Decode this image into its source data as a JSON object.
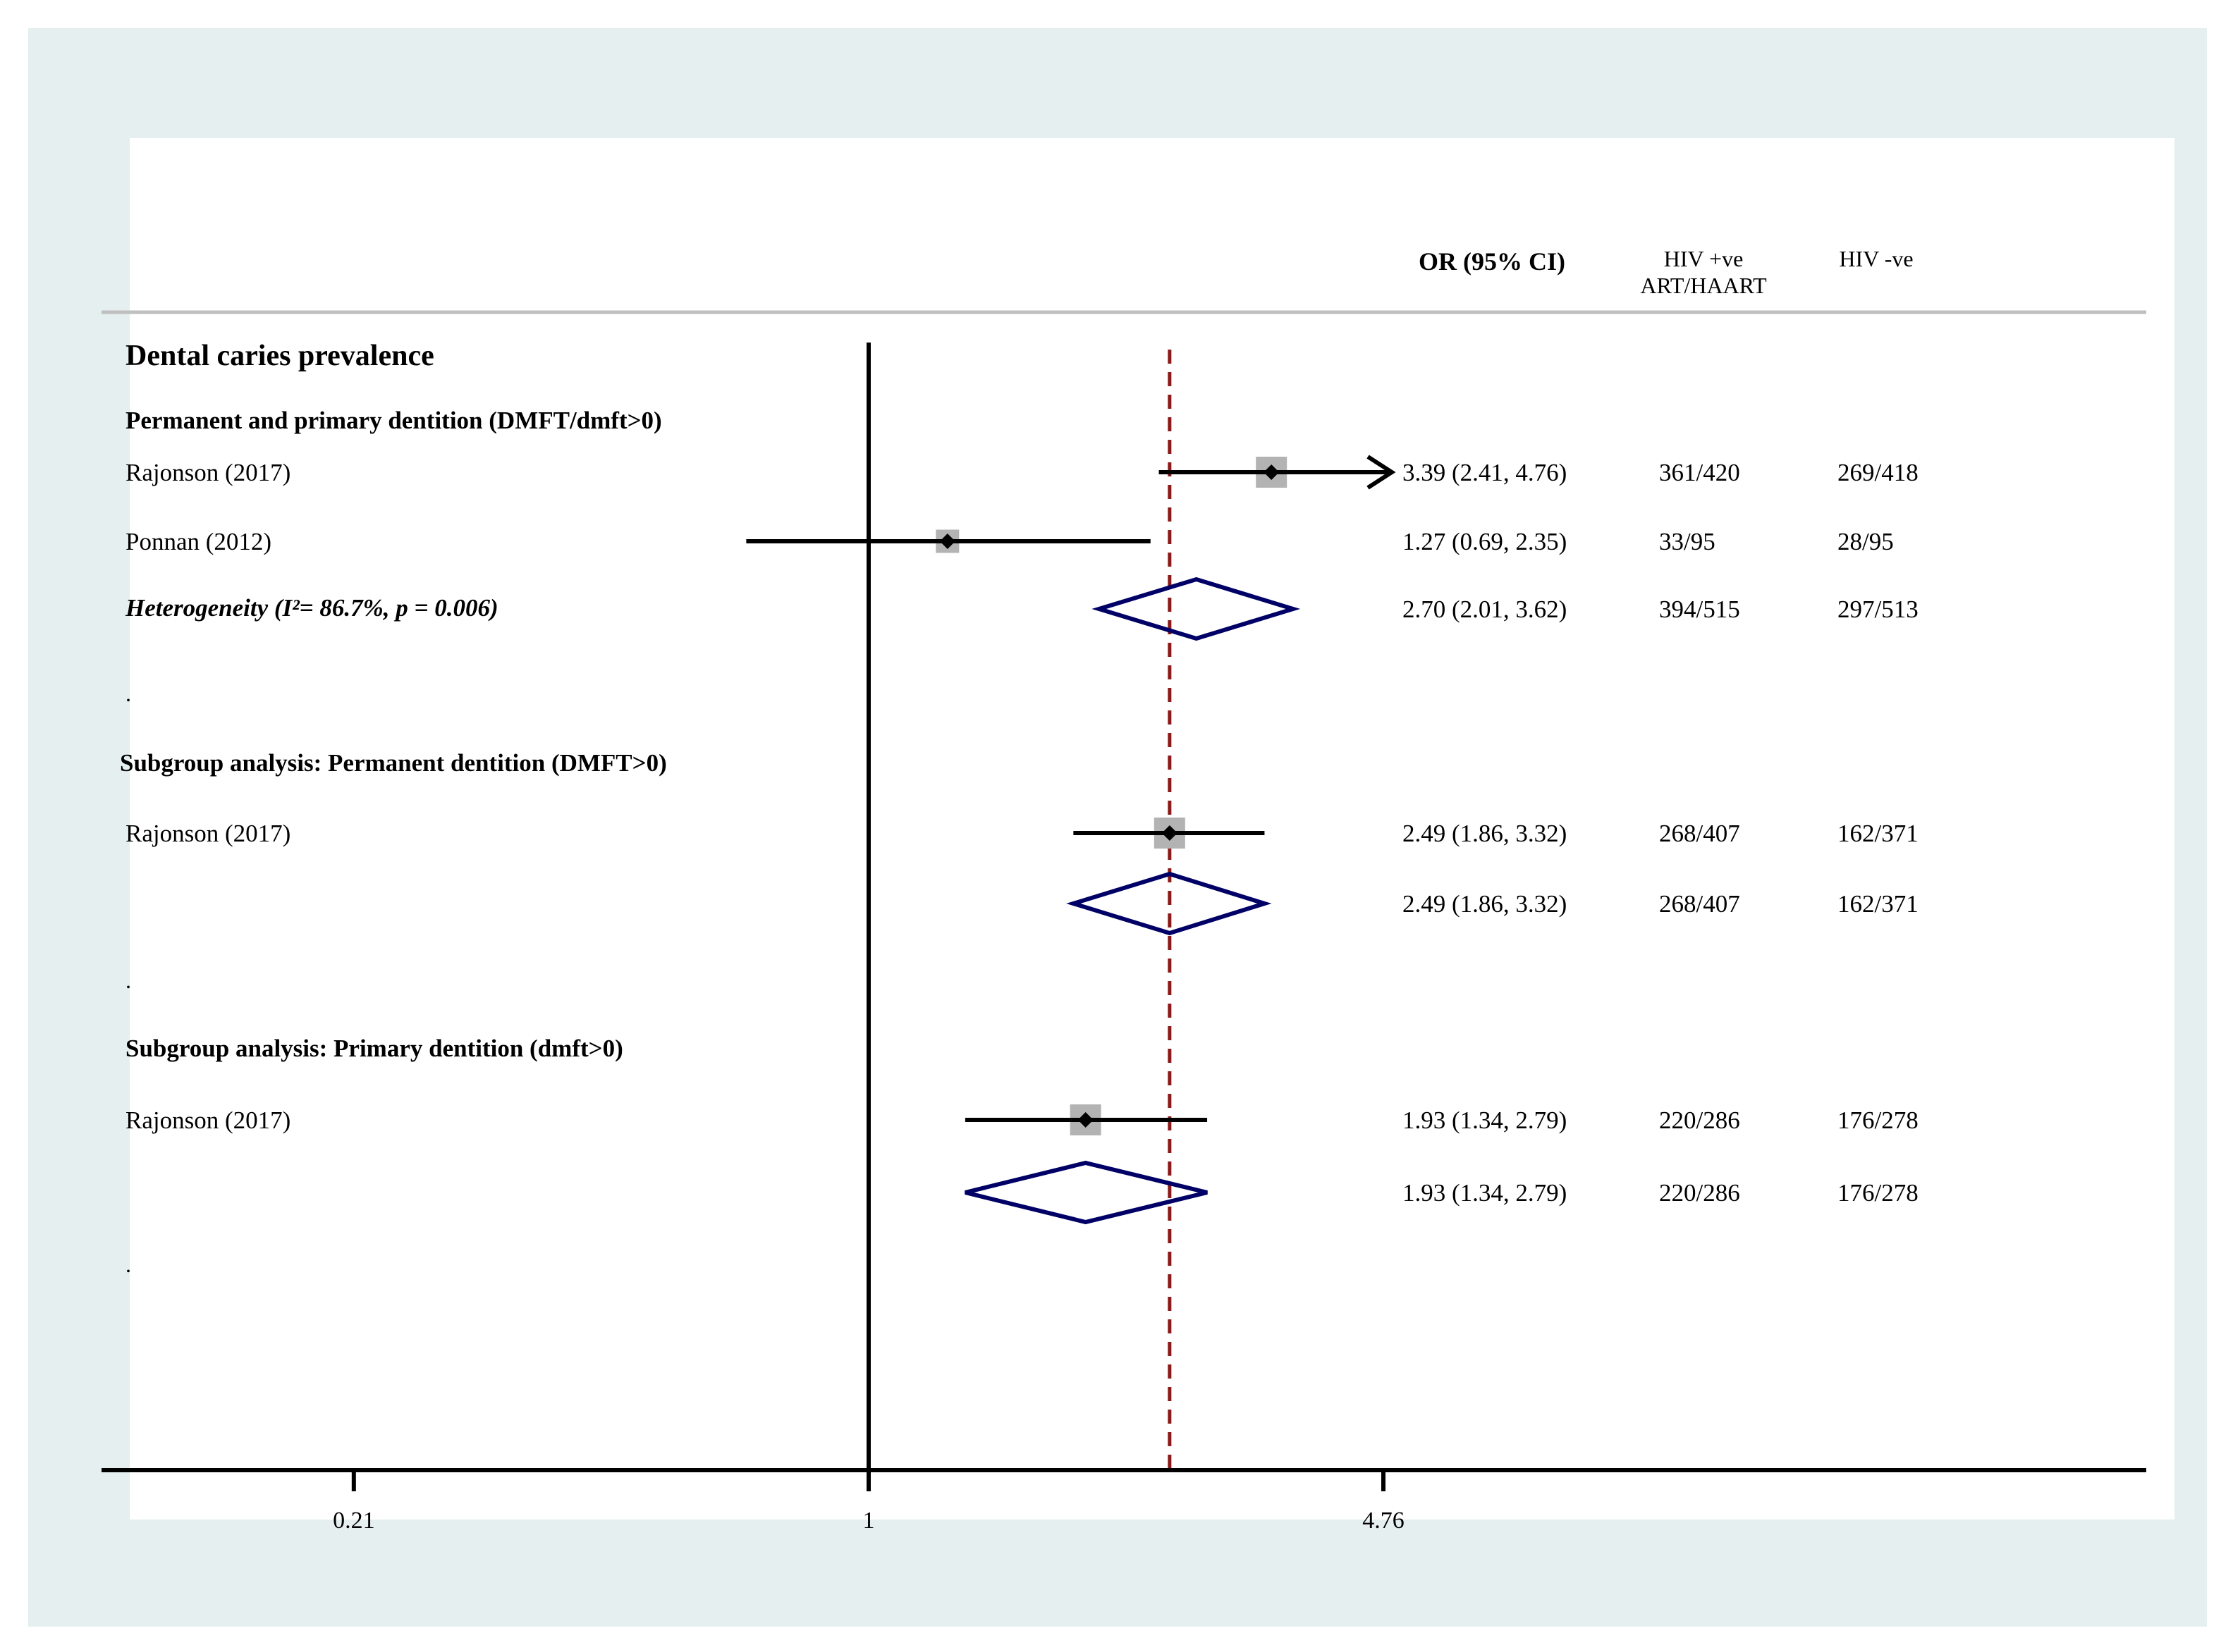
{
  "chart_data": {
    "type": "forest",
    "scale": "log",
    "reference_line": 1,
    "pooled_line": 2.49,
    "x_ticks": [
      "0.21",
      "1",
      "4.76"
    ],
    "x_tick_values": [
      0.21,
      1,
      4.76
    ],
    "xlim": [
      0.12,
      20
    ],
    "headers": {
      "or": "OR (95% CI)",
      "hiv_pos_line1": "HIV +ve",
      "hiv_pos_line2": "ART/HAART",
      "hiv_neg": "HIV -ve"
    },
    "rows": [
      {
        "kind": "title",
        "label": "Dental caries prevalence"
      },
      {
        "kind": "heading",
        "label": "Permanent and primary dentition (DMFT/dmft>0)"
      },
      {
        "kind": "study",
        "label": "Rajonson (2017)",
        "or": 3.39,
        "lo": 2.41,
        "hi": 4.76,
        "arrow": true,
        "weight": 1.0,
        "ci_text": "3.39 (2.41, 4.76)",
        "hiv_pos": "361/420",
        "hiv_neg": "269/418"
      },
      {
        "kind": "study",
        "label": "Ponnan (2012)",
        "or": 1.27,
        "lo": 0.69,
        "hi": 2.35,
        "weight": 0.75,
        "ci_text": "1.27 (0.69, 2.35)",
        "hiv_pos": "33/95",
        "hiv_neg": "28/95"
      },
      {
        "kind": "pooled",
        "label": "Heterogeneity (I²= 86.7%, p = 0.006)",
        "or": 2.7,
        "lo": 2.01,
        "hi": 3.62,
        "ci_text": "2.70 (2.01, 3.62)",
        "hiv_pos": "394/515",
        "hiv_neg": "297/513"
      },
      {
        "kind": "spacer",
        "label": "."
      },
      {
        "kind": "heading",
        "label": "Subgroup analysis: Permanent dentition (DMFT>0)"
      },
      {
        "kind": "study",
        "label": "Rajonson (2017)",
        "or": 2.49,
        "lo": 1.86,
        "hi": 3.32,
        "weight": 1.0,
        "ci_text": "2.49 (1.86, 3.32)",
        "hiv_pos": "268/407",
        "hiv_neg": "162/371"
      },
      {
        "kind": "pooled",
        "label": "",
        "or": 2.49,
        "lo": 1.86,
        "hi": 3.32,
        "ci_text": "2.49 (1.86, 3.32)",
        "hiv_pos": "268/407",
        "hiv_neg": "162/371"
      },
      {
        "kind": "spacer",
        "label": "."
      },
      {
        "kind": "heading",
        "label": "Subgroup analysis: Primary dentition (dmft>0)"
      },
      {
        "kind": "study",
        "label": "Rajonson (2017)",
        "or": 1.93,
        "lo": 1.34,
        "hi": 2.79,
        "weight": 1.0,
        "ci_text": "1.93 (1.34, 2.79)",
        "hiv_pos": "220/286",
        "hiv_neg": "176/278"
      },
      {
        "kind": "pooled",
        "label": "",
        "or": 1.93,
        "lo": 1.34,
        "hi": 2.79,
        "ci_text": "1.93 (1.34, 2.79)",
        "hiv_pos": "220/286",
        "hiv_neg": "176/278"
      },
      {
        "kind": "spacer",
        "label": "."
      }
    ],
    "colors": {
      "ref_line": "#000000",
      "pooled_line": "#8b1a1a",
      "diamond": "#000066",
      "weight_box": "#b3b3b3",
      "separator": "#bfbfbf"
    }
  }
}
